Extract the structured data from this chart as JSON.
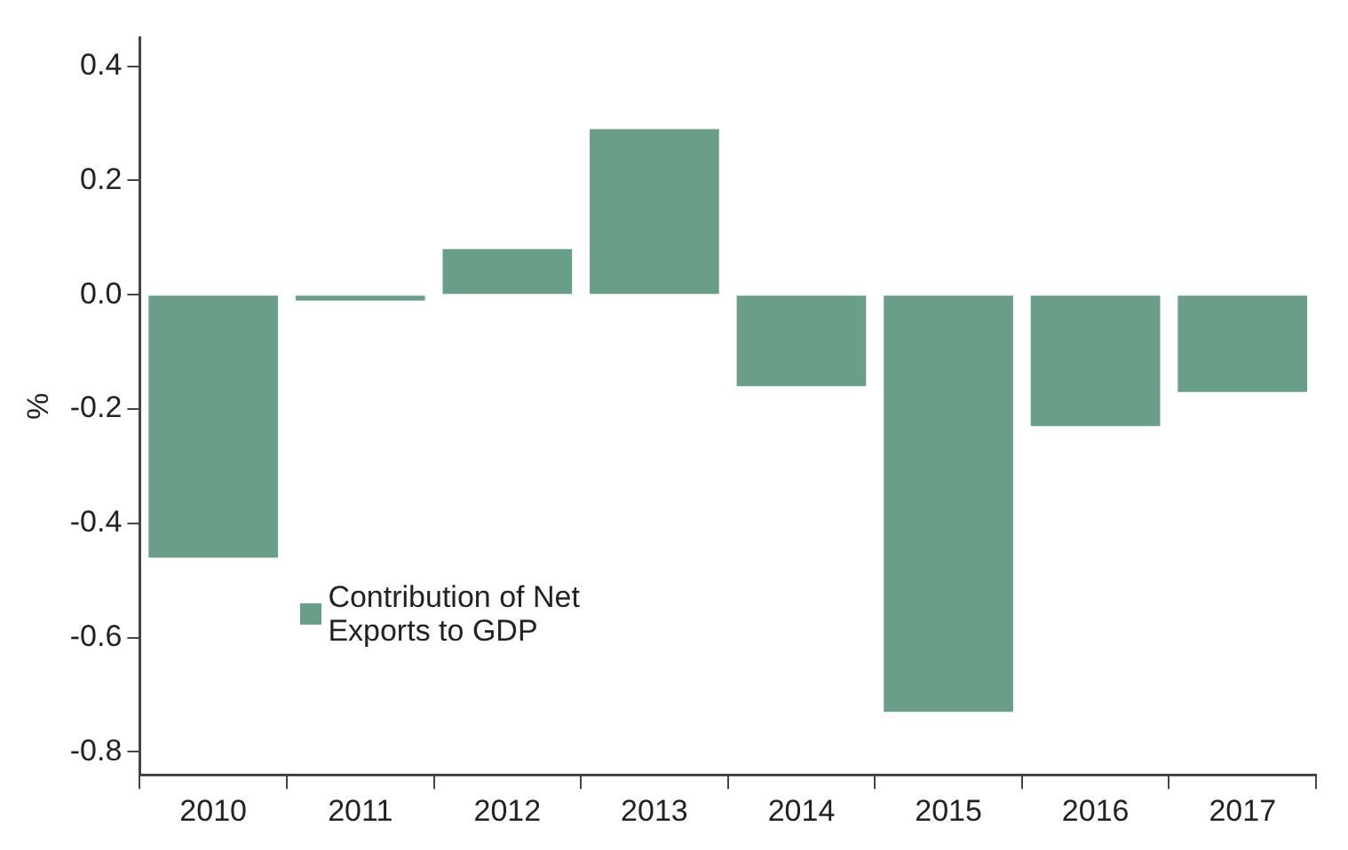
{
  "chart_data": {
    "type": "bar",
    "ylabel": "%",
    "categories": [
      "2010",
      "2011",
      "2012",
      "2013",
      "2014",
      "2015",
      "2016",
      "2017"
    ],
    "series": [
      {
        "name": "Contribution of Net Exports to GDP",
        "color": "#6a9e88",
        "values": [
          -0.46,
          -0.01,
          0.08,
          0.29,
          -0.16,
          -0.73,
          -0.23,
          -0.17
        ]
      }
    ],
    "ylim": [
      -0.84,
      0.45
    ],
    "yticks": [
      {
        "value": 0.4,
        "label": "0.4"
      },
      {
        "value": 0.2,
        "label": "0.2"
      },
      {
        "value": 0,
        "label": "0.0"
      },
      {
        "value": -0.2,
        "label": "-0.2"
      },
      {
        "value": -0.4,
        "label": "-0.4"
      },
      {
        "value": -0.6,
        "label": "-0.6"
      },
      {
        "value": -0.8,
        "label": "-0.8"
      }
    ],
    "grid": false,
    "legend": "bottom left"
  }
}
